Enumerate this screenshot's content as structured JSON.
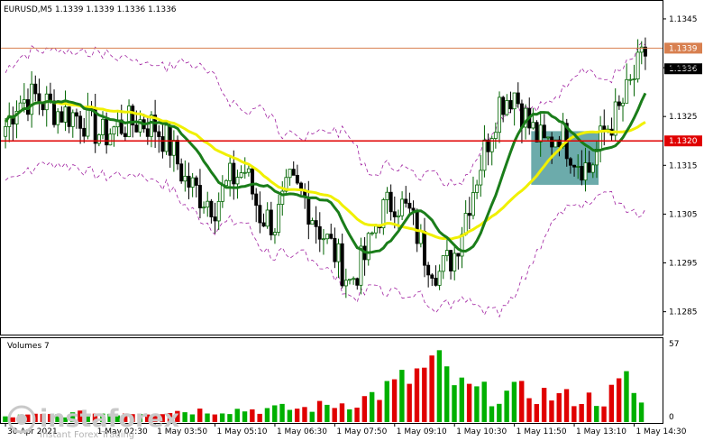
{
  "header": {
    "symbol_line": "EURUSD,M5  1.1339 1.1339 1.1336 1.1336"
  },
  "volume_panel": {
    "title": "Volumes 7",
    "scale_top": "57",
    "scale_bottom": "0"
  },
  "watermark": {
    "brand": "instaforex",
    "tagline": "Instant Forex Trading"
  },
  "colors": {
    "bull": "#006400",
    "bear": "#000000",
    "ma_fast": "#1a7d1a",
    "ma_slow": "#f0f000",
    "band": "#a020a0",
    "resistance_line": "#e00000",
    "price_line": "#d88050",
    "zone": "#3b8f8f",
    "volume_up": "#00b000",
    "volume_down": "#e00000"
  },
  "chart_data": {
    "type": "candlestick",
    "symbol": "EURUSD",
    "timeframe": "M5",
    "ohlc_header": {
      "open": 1.1339,
      "high": 1.1339,
      "low": 1.1336,
      "close": 1.1336
    },
    "y_ticks": [
      "1.1345",
      "1.1335",
      "1.1325",
      "1.1315",
      "1.1305",
      "1.1295",
      "1.1285"
    ],
    "ylim": [
      1.12805,
      1.13485
    ],
    "x_ticks": [
      "30 Apr 2021",
      "1 May 02:30",
      "1 May 03:50",
      "1 May 05:10",
      "1 May 06:30",
      "1 May 07:50",
      "1 May 09:10",
      "1 May 10:30",
      "1 May 11:50",
      "1 May 13:10",
      "1 May 14:30"
    ],
    "x_tick_index": [
      0,
      24,
      40,
      56,
      72,
      88,
      104,
      120,
      136,
      152,
      168
    ],
    "candle_count": 172,
    "levels": [
      {
        "price": 1.132,
        "label": "1.1320",
        "style": "support_resistance"
      },
      {
        "price": 1.1339,
        "label": "1.1339",
        "style": "last_bid"
      }
    ],
    "current_price_label": "1.1336",
    "highlight_zone": {
      "from_index": 141,
      "to_index": 158,
      "price_low": 1.1311,
      "price_high": 1.1322
    },
    "close_path": [
      [
        0,
        1.1323
      ],
      [
        3,
        1.1328
      ],
      [
        8,
        1.1329
      ],
      [
        14,
        1.1326
      ],
      [
        20,
        1.1325
      ],
      [
        26,
        1.1321
      ],
      [
        30,
        1.1323
      ],
      [
        36,
        1.1324
      ],
      [
        40,
        1.1323
      ],
      [
        44,
        1.1319
      ],
      [
        48,
        1.1312
      ],
      [
        52,
        1.1309
      ],
      [
        56,
        1.1307
      ],
      [
        60,
        1.1312
      ],
      [
        64,
        1.1314
      ],
      [
        68,
        1.1305
      ],
      [
        72,
        1.1303
      ],
      [
        76,
        1.1311
      ],
      [
        80,
        1.1308
      ],
      [
        84,
        1.1302
      ],
      [
        88,
        1.1297
      ],
      [
        92,
        1.1291
      ],
      [
        96,
        1.1296
      ],
      [
        100,
        1.1305
      ],
      [
        104,
        1.1308
      ],
      [
        108,
        1.1305
      ],
      [
        112,
        1.1297
      ],
      [
        116,
        1.1293
      ],
      [
        120,
        1.1297
      ],
      [
        124,
        1.1308
      ],
      [
        128,
        1.1318
      ],
      [
        132,
        1.1328
      ],
      [
        136,
        1.133
      ],
      [
        140,
        1.1323
      ],
      [
        144,
        1.1319
      ],
      [
        148,
        1.1322
      ],
      [
        152,
        1.1317
      ],
      [
        156,
        1.1314
      ],
      [
        160,
        1.1322
      ],
      [
        164,
        1.1326
      ],
      [
        168,
        1.1333
      ],
      [
        171,
        1.1338
      ]
    ],
    "volume_shape": [
      [
        0,
        4
      ],
      [
        20,
        6
      ],
      [
        40,
        8
      ],
      [
        60,
        9
      ],
      [
        80,
        10
      ],
      [
        95,
        16
      ],
      [
        105,
        28
      ],
      [
        115,
        42
      ],
      [
        122,
        25
      ],
      [
        130,
        20
      ],
      [
        140,
        22
      ],
      [
        150,
        18
      ],
      [
        160,
        17
      ],
      [
        166,
        30
      ],
      [
        171,
        10
      ]
    ],
    "volume_max": 57,
    "indicators": [
      "MA fast (green)",
      "MA slow (yellow)",
      "Envelope bands (purple dashed)"
    ]
  }
}
